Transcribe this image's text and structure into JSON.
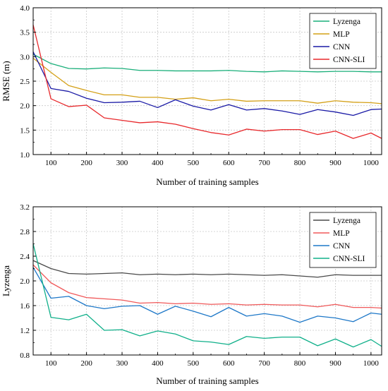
{
  "chart_data": [
    {
      "type": "line",
      "xlabel": "Number of training samples",
      "ylabel": "RMSE (m)",
      "xlim": [
        50,
        1030
      ],
      "ylim": [
        1.0,
        4.0
      ],
      "x_ticks": [
        100,
        200,
        300,
        400,
        500,
        600,
        700,
        800,
        900,
        1000
      ],
      "y_ticks": [
        1.0,
        1.5,
        2.0,
        2.5,
        3.0,
        3.5,
        4.0
      ],
      "y_tick_labels": [
        "1.0",
        "1.5",
        "2.0",
        "2.5",
        "3.0",
        "3.5",
        "4.0"
      ],
      "grid": true,
      "legend_position": "top-right",
      "x": [
        50,
        100,
        150,
        200,
        250,
        300,
        350,
        400,
        450,
        500,
        550,
        600,
        650,
        700,
        750,
        800,
        850,
        900,
        950,
        1000,
        1030
      ],
      "series": [
        {
          "name": "Lyzenga",
          "color": "#1aaf7a",
          "values": [
            3.05,
            2.86,
            2.76,
            2.75,
            2.77,
            2.76,
            2.72,
            2.72,
            2.71,
            2.71,
            2.71,
            2.72,
            2.7,
            2.69,
            2.71,
            2.7,
            2.69,
            2.7,
            2.7,
            2.69,
            2.69
          ]
        },
        {
          "name": "MLP",
          "color": "#d4a017",
          "values": [
            2.97,
            2.68,
            2.41,
            2.31,
            2.22,
            2.22,
            2.17,
            2.17,
            2.13,
            2.16,
            2.1,
            2.13,
            2.09,
            2.1,
            2.1,
            2.1,
            2.05,
            2.1,
            2.07,
            2.06,
            2.04
          ]
        },
        {
          "name": "CNN",
          "color": "#1a1aa6",
          "values": [
            3.1,
            2.35,
            2.29,
            2.15,
            2.06,
            2.07,
            2.09,
            1.96,
            2.12,
            1.99,
            1.91,
            2.02,
            1.91,
            1.94,
            1.89,
            1.82,
            1.92,
            1.87,
            1.8,
            1.92,
            1.93
          ]
        },
        {
          "name": "CNN-SLI",
          "color": "#e8292c",
          "values": [
            3.65,
            2.14,
            1.98,
            2.01,
            1.75,
            1.7,
            1.65,
            1.67,
            1.62,
            1.53,
            1.45,
            1.4,
            1.52,
            1.48,
            1.51,
            1.51,
            1.41,
            1.48,
            1.33,
            1.44,
            1.33
          ]
        }
      ]
    },
    {
      "type": "line",
      "xlabel": "Number of training samples",
      "ylabel": "Lyzenga",
      "xlim": [
        50,
        1030
      ],
      "ylim": [
        0.8,
        3.2
      ],
      "x_ticks": [
        100,
        200,
        300,
        400,
        500,
        600,
        700,
        800,
        900,
        1000
      ],
      "y_ticks": [
        0.8,
        1.2,
        1.6,
        2.0,
        2.4,
        2.8,
        3.2
      ],
      "y_tick_labels": [
        "0.8",
        "1.2",
        "1.6",
        "2.0",
        "2.4",
        "2.8",
        "3.2"
      ],
      "grid": true,
      "legend_position": "top-right",
      "x": [
        50,
        100,
        150,
        200,
        250,
        300,
        350,
        400,
        450,
        500,
        550,
        600,
        650,
        700,
        750,
        800,
        850,
        900,
        950,
        1000,
        1030
      ],
      "series": [
        {
          "name": "Lyzenga",
          "color": "#4a4a4a",
          "values": [
            2.33,
            2.2,
            2.12,
            2.11,
            2.12,
            2.13,
            2.1,
            2.11,
            2.1,
            2.11,
            2.1,
            2.11,
            2.1,
            2.09,
            2.1,
            2.08,
            2.06,
            2.1,
            2.09,
            2.09,
            2.09
          ]
        },
        {
          "name": "MLP",
          "color": "#f0595a",
          "values": [
            2.26,
            1.97,
            1.81,
            1.73,
            1.71,
            1.69,
            1.64,
            1.65,
            1.63,
            1.64,
            1.62,
            1.63,
            1.61,
            1.62,
            1.61,
            1.61,
            1.58,
            1.62,
            1.57,
            1.57,
            1.56
          ]
        },
        {
          "name": "CNN",
          "color": "#1e78c8",
          "values": [
            2.22,
            1.72,
            1.75,
            1.6,
            1.55,
            1.59,
            1.6,
            1.46,
            1.59,
            1.51,
            1.42,
            1.57,
            1.43,
            1.47,
            1.43,
            1.33,
            1.43,
            1.4,
            1.34,
            1.48,
            1.46
          ]
        },
        {
          "name": "CNN-SLI",
          "color": "#10b08a",
          "values": [
            2.6,
            1.41,
            1.37,
            1.46,
            1.2,
            1.21,
            1.11,
            1.19,
            1.14,
            1.03,
            1.01,
            0.97,
            1.1,
            1.07,
            1.09,
            1.09,
            0.95,
            1.06,
            0.93,
            1.05,
            0.94
          ]
        }
      ]
    }
  ]
}
